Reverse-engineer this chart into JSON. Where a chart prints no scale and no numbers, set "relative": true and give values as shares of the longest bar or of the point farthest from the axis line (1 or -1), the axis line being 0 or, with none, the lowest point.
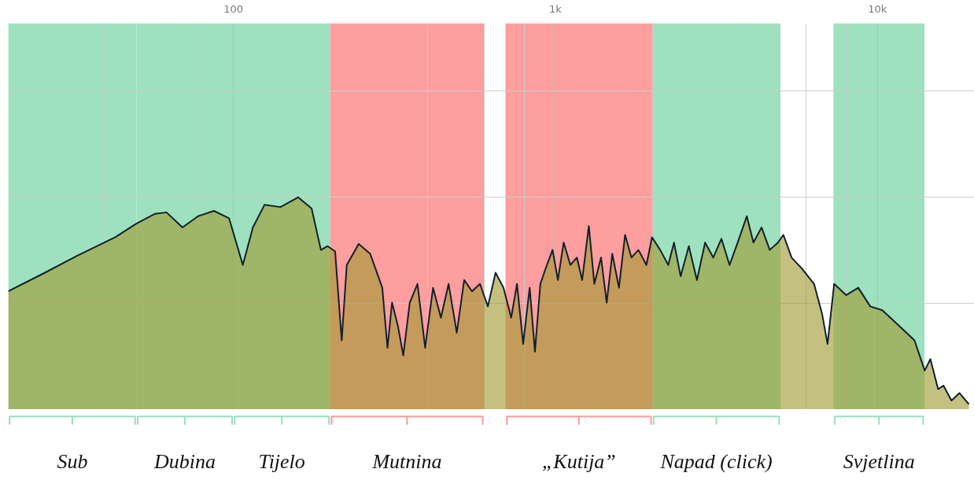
{
  "chart_data": {
    "type": "area",
    "relative": true,
    "log": "x",
    "grid": true,
    "tick_labels": "x",
    "xlim": [
      20,
      20000
    ],
    "xticks": [
      {
        "value": 100,
        "label": "100"
      },
      {
        "value": 1000,
        "label": "1k"
      },
      {
        "value": 10000,
        "label": "10k"
      }
    ],
    "bands": [
      {
        "axis": "x",
        "from": 20,
        "to": 50,
        "label": "Sub",
        "color": "#99dfbb"
      },
      {
        "axis": "x",
        "from": 50,
        "to": 100,
        "label": "Dubina",
        "color": "#99dfbb"
      },
      {
        "axis": "x",
        "from": 100,
        "to": 200,
        "label": "Tijelo",
        "color": "#99dfbb"
      },
      {
        "axis": "x",
        "from": 200,
        "to": 600,
        "label": "Mutnina",
        "color": "#ff9999"
      },
      {
        "axis": "x",
        "from": 700,
        "to": 2000,
        "label": "„Kutija”",
        "color": "#ff9999"
      },
      {
        "axis": "x",
        "from": 2000,
        "to": 5000,
        "label": "Napad (click)",
        "color": "#99dfbb"
      },
      {
        "axis": "x",
        "from": 7300,
        "to": 14000,
        "label": "Svjetlina",
        "color": "#99dfbb"
      }
    ],
    "series": [
      {
        "color": "#a09a34",
        "x": [
          20,
          26,
          32.6,
          43,
          50,
          57,
          62,
          69.5,
          77.7,
          87,
          97,
          107,
          115,
          125,
          140,
          159,
          175,
          187,
          196,
          207,
          217,
          225,
          245,
          266,
          290,
          301,
          311,
          324,
          337,
          353,
          373,
          394,
          417,
          441,
          466,
          494,
          521,
          551,
          583,
          617,
          652,
          690,
          729,
          760,
          794,
          832,
          864,
          898,
          941,
          980,
          1018,
          1061,
          1113,
          1166,
          1211,
          1270,
          1321,
          1386,
          1443,
          1502,
          1575,
          1646,
          1722,
          1811,
          1917,
          1995,
          2115,
          2241,
          2335,
          2449,
          2596,
          2751,
          2916,
          3091,
          3277,
          3473,
          3682,
          3929,
          4120,
          4368,
          4630,
          4908,
          5105,
          5414,
          5836,
          6356,
          6733,
          6999,
          7338,
          7996,
          8715,
          9499,
          10354,
          11286,
          12300,
          13030,
          14020,
          14600,
          15430,
          16030,
          16980,
          17970,
          19230
        ],
        "values": [
          0.557,
          0.645,
          0.723,
          0.812,
          0.876,
          0.922,
          0.929,
          0.858,
          0.911,
          0.936,
          0.901,
          0.681,
          0.858,
          0.965,
          0.954,
          1.0,
          0.947,
          0.752,
          0.77,
          0.745,
          0.326,
          0.681,
          0.78,
          0.734,
          0.574,
          0.291,
          0.504,
          0.397,
          0.255,
          0.504,
          0.592,
          0.291,
          0.574,
          0.433,
          0.592,
          0.362,
          0.61,
          0.557,
          0.592,
          0.486,
          0.645,
          0.574,
          0.433,
          0.592,
          0.309,
          0.574,
          0.273,
          0.592,
          0.681,
          0.752,
          0.61,
          0.787,
          0.681,
          0.716,
          0.61,
          0.865,
          0.592,
          0.716,
          0.504,
          0.734,
          0.574,
          0.823,
          0.716,
          0.752,
          0.681,
          0.812,
          0.752,
          0.681,
          0.787,
          0.628,
          0.77,
          0.61,
          0.787,
          0.716,
          0.805,
          0.681,
          0.787,
          0.911,
          0.787,
          0.858,
          0.752,
          0.787,
          0.823,
          0.716,
          0.663,
          0.592,
          0.45,
          0.309,
          0.592,
          0.539,
          0.574,
          0.486,
          0.468,
          0.415,
          0.362,
          0.326,
          0.184,
          0.238,
          0.096,
          0.113,
          0.043,
          0.078,
          0.025
        ]
      }
    ]
  }
}
